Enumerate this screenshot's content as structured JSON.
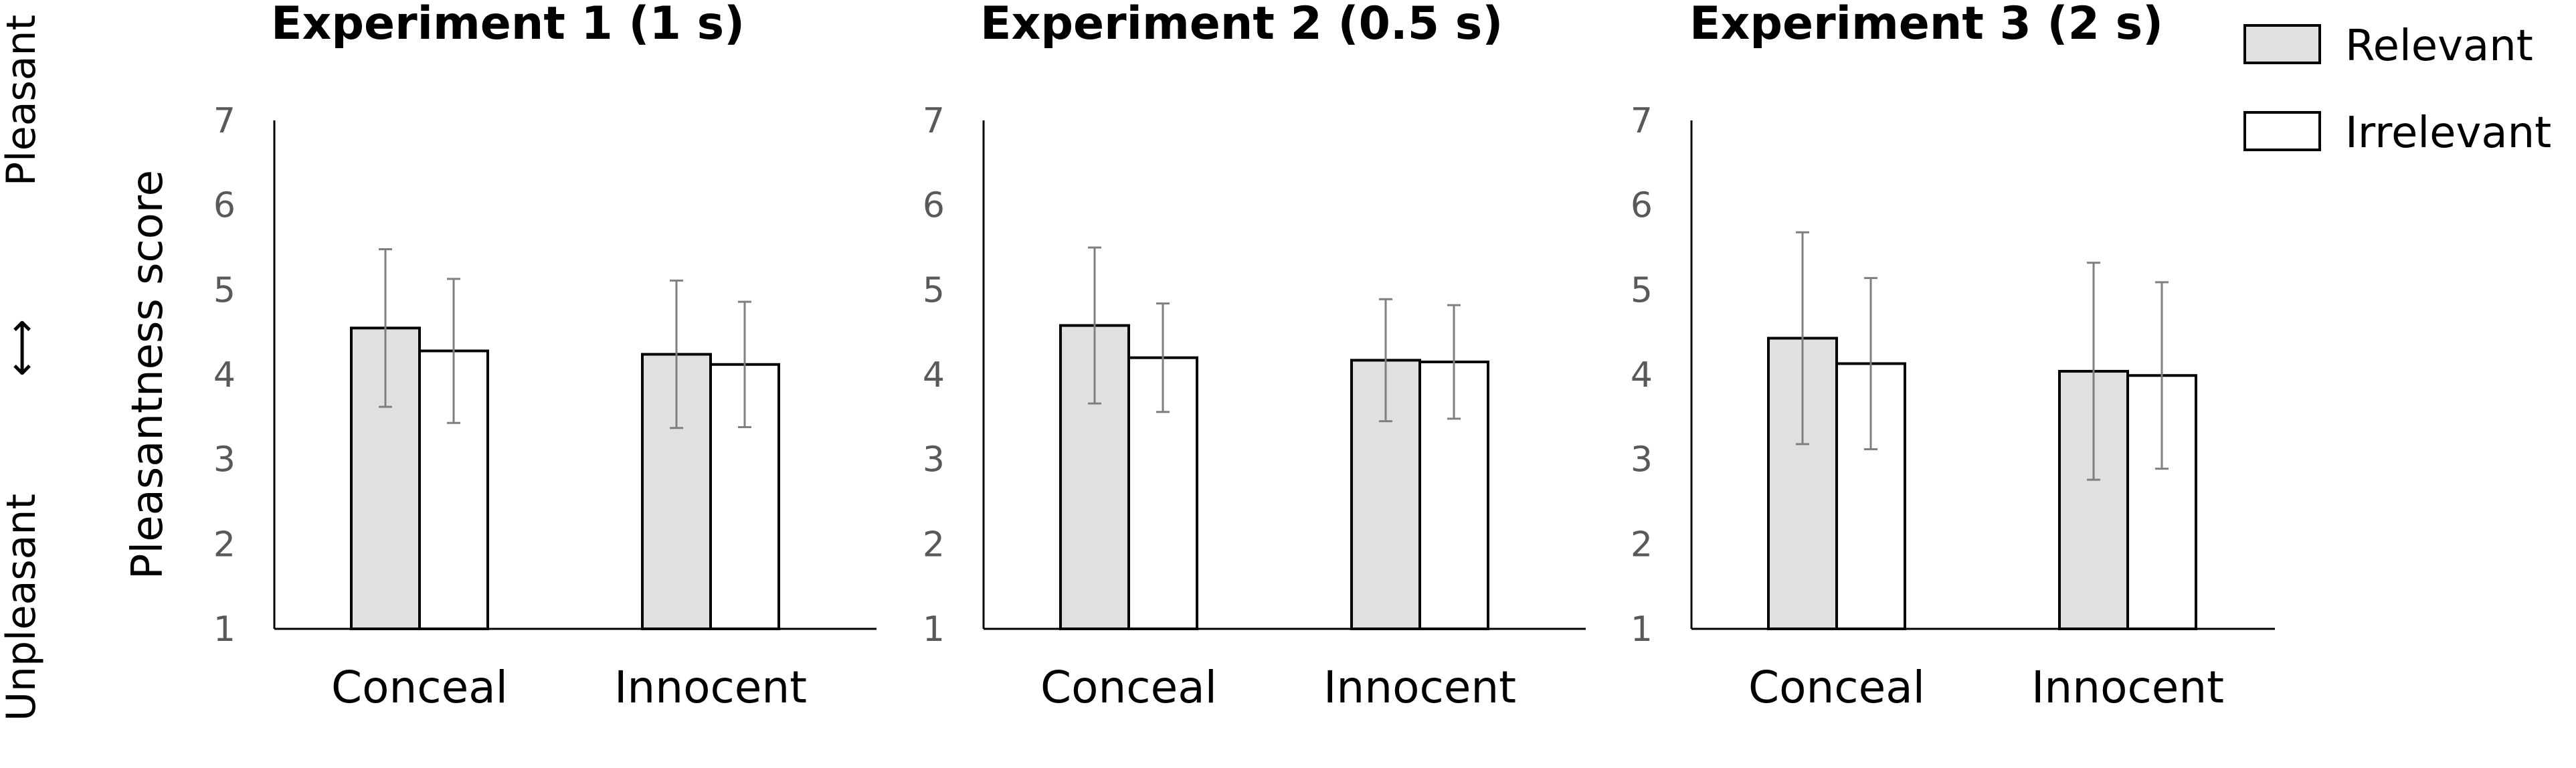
{
  "chart_data": [
    {
      "type": "bar",
      "title": "Experiment 1 (1 s)",
      "categories": [
        "Conceal",
        "Innocent"
      ],
      "series": [
        {
          "name": "Relevant",
          "values": [
            4.55,
            4.24
          ],
          "errors": [
            0.93,
            0.87
          ]
        },
        {
          "name": "Irrelevant",
          "values": [
            4.28,
            4.12
          ],
          "errors": [
            0.85,
            0.74
          ]
        }
      ],
      "ylim": [
        1,
        7
      ],
      "yticks": [
        "1",
        "2",
        "3",
        "4",
        "5",
        "6",
        "7"
      ]
    },
    {
      "type": "bar",
      "title": "Experiment 2 (0.5 s)",
      "categories": [
        "Conceal",
        "Innocent"
      ],
      "series": [
        {
          "name": "Relevant",
          "values": [
            4.58,
            4.17
          ],
          "errors": [
            0.92,
            0.72
          ]
        },
        {
          "name": "Irrelevant",
          "values": [
            4.2,
            4.15
          ],
          "errors": [
            0.64,
            0.67
          ]
        }
      ],
      "ylim": [
        1,
        7
      ],
      "yticks": [
        "1",
        "2",
        "3",
        "4",
        "5",
        "6",
        "7"
      ]
    },
    {
      "type": "bar",
      "title": "Experiment 3 (2 s)",
      "categories": [
        "Conceal",
        "Innocent"
      ],
      "series": [
        {
          "name": "Relevant",
          "values": [
            4.43,
            4.04
          ],
          "errors": [
            1.25,
            1.28
          ]
        },
        {
          "name": "Irrelevant",
          "values": [
            4.13,
            3.99
          ],
          "errors": [
            1.01,
            1.1
          ]
        }
      ],
      "ylim": [
        1,
        7
      ],
      "yticks": [
        "1",
        "2",
        "3",
        "4",
        "5",
        "6",
        "7"
      ]
    }
  ],
  "ylabel": "Pleasantness score",
  "scale_labels": {
    "low": "Unpleasant",
    "high": "Pleasant",
    "arrow": "⟷"
  },
  "legend": {
    "placement": "top-right",
    "items": [
      {
        "label": "Relevant",
        "color": "#e0e0e0"
      },
      {
        "label": "Irrelevant",
        "color": "#ffffff"
      }
    ]
  },
  "colors": {
    "relevant": "#e0e0e0",
    "irrelevant": "#ffffff",
    "error_bar": "#7f7f7f",
    "tick_text": "#595959"
  }
}
